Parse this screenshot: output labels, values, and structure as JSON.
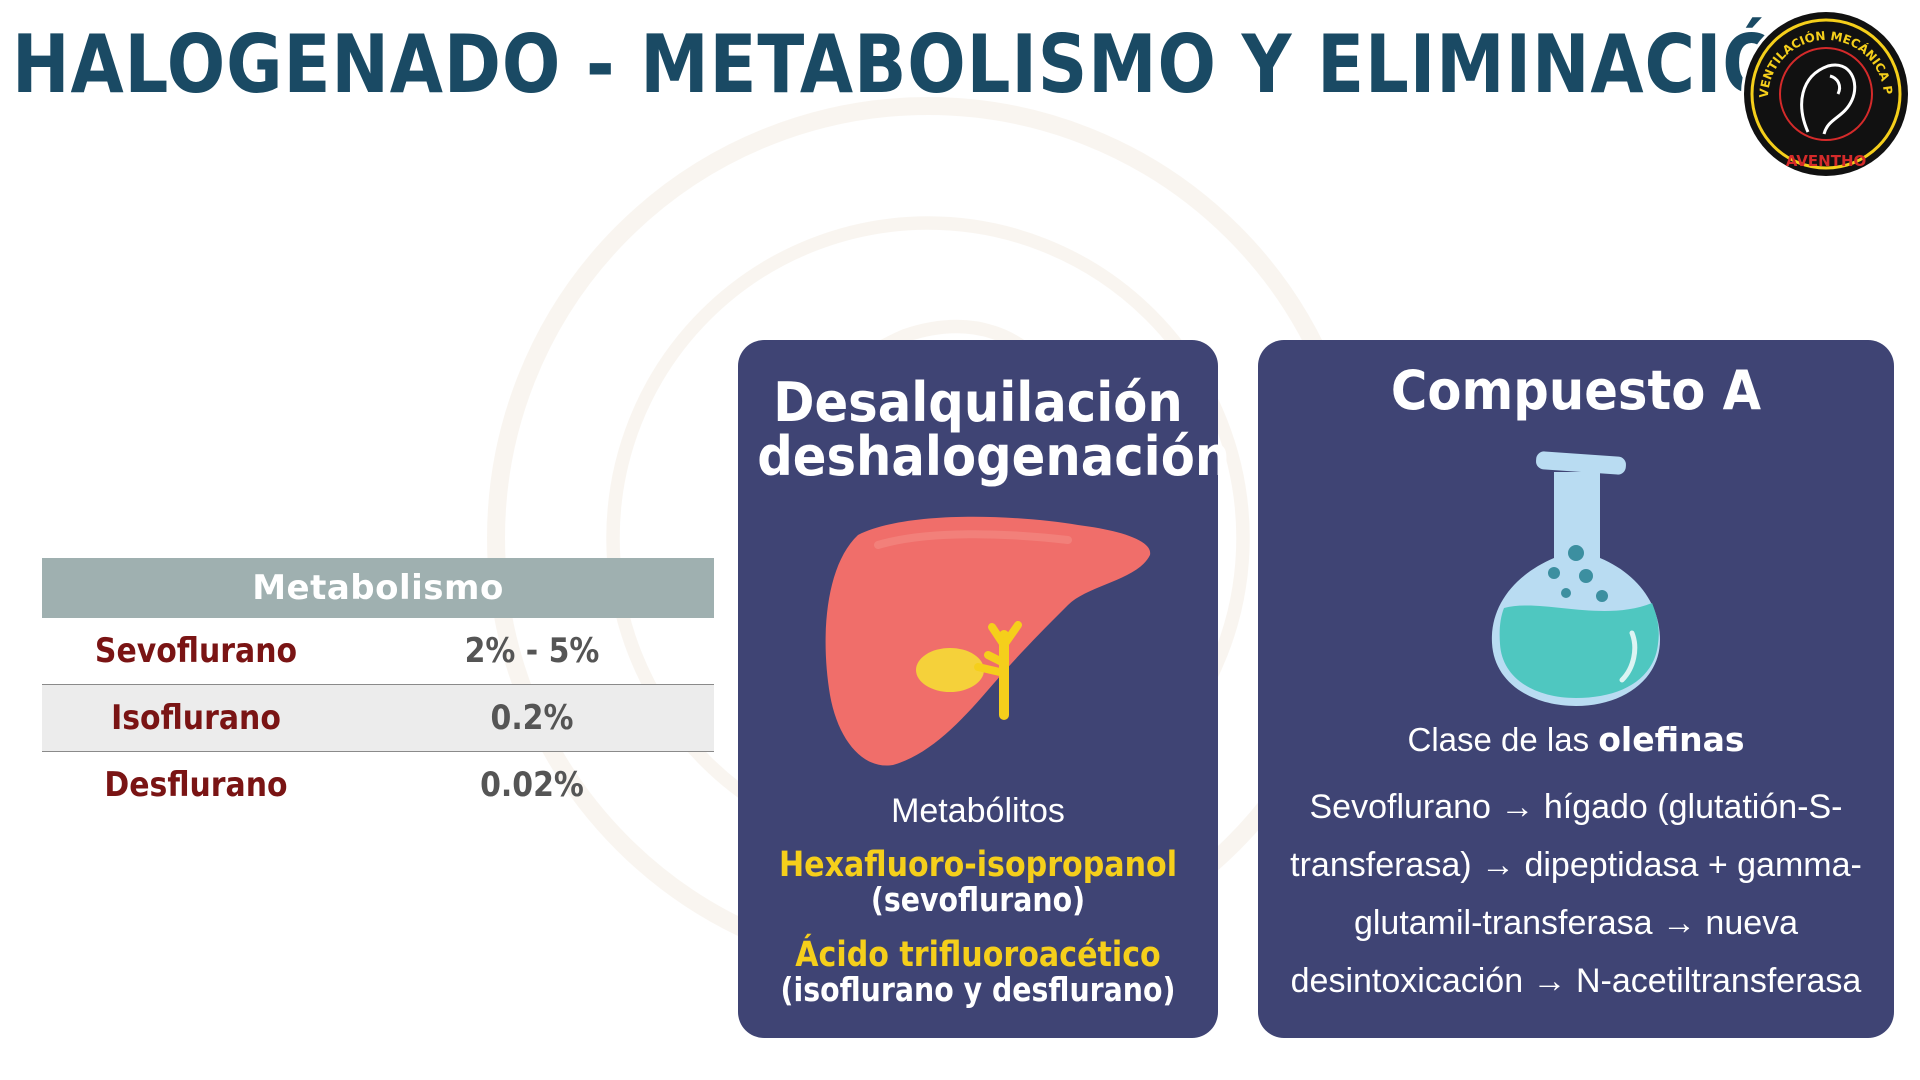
{
  "title": "HALOGENADO  - METABOLISMO Y ELIMINACIÓN",
  "logo": {
    "ring_text": "VENTILACIÓN MECÁNICA PERIOPERATORIA",
    "brand": "AVENTHO"
  },
  "table": {
    "header": "Metabolismo",
    "rows": [
      {
        "agent": "Sevoflurano",
        "value": "2% - 5%"
      },
      {
        "agent": "Isoflurano",
        "value": "0.2%"
      },
      {
        "agent": "Desflurano",
        "value": "0.02%"
      }
    ]
  },
  "card_left": {
    "title_line1": "Desalquilación",
    "title_line2": "deshalogenación",
    "metab_label": "Metabólitos",
    "metabolite1": "Hexafluoro-isopropanol",
    "metabolite1_source": "(sevoflurano)",
    "metabolite2": "Ácido trifluoroacético",
    "metabolite2_source": "(isoflurano y desflurano)",
    "icon": "liver-icon"
  },
  "card_right": {
    "title": "Compuesto A",
    "olefinas_prefix": "Clase de las ",
    "olefinas_bold": "olefinas",
    "pathway_lines": [
      "Sevoflurano → hígado (glutatión-S-",
      "transferasa) → dipeptidasa + gamma-",
      "glutamil-transferasa → nueva",
      "desintoxicación → N-acetiltransferasa"
    ],
    "icon": "flask-icon"
  },
  "colors": {
    "title": "#1a4a64",
    "card_bg": "#3f4474",
    "table_header": "#9fb0b0",
    "agent_name": "#7a1414",
    "metabolite_highlight": "#f5cf1b",
    "liver": "#f06e6a",
    "flask_liquid": "#4fc7c0"
  }
}
